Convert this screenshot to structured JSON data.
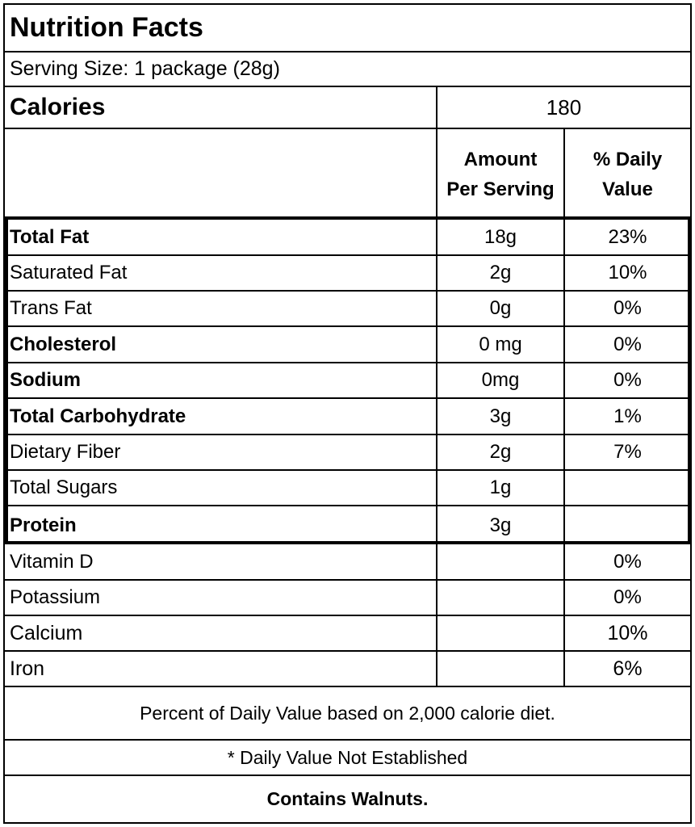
{
  "title": "Nutrition Facts",
  "serving_size": "Serving Size: 1 package (28g)",
  "calories": {
    "label": "Calories",
    "value": "180"
  },
  "header": {
    "amount_line1": "Amount",
    "amount_line2": "Per Serving",
    "dv_line1": "% Daily",
    "dv_line2": "Value"
  },
  "nutrients": [
    {
      "name": "Total Fat",
      "amount": "18g",
      "dv": "23%"
    },
    {
      "name": "Saturated Fat",
      "amount": "2g",
      "dv": "10%"
    },
    {
      "name": "Trans Fat",
      "amount": "0g",
      "dv": "0%"
    },
    {
      "name": "Cholesterol",
      "amount": "0 mg",
      "dv": "0%"
    },
    {
      "name": "Sodium",
      "amount": "0mg",
      "dv": "0%"
    },
    {
      "name": "Total Carbohydrate",
      "amount": "3g",
      "dv": "1%"
    },
    {
      "name": "Dietary Fiber",
      "amount": "2g",
      "dv": "7%"
    },
    {
      "name": "Total Sugars",
      "amount": "1g",
      "dv": ""
    },
    {
      "name": "Protein",
      "amount": "3g",
      "dv": ""
    }
  ],
  "vitamins": [
    {
      "name": "Vitamin D",
      "amount": "",
      "dv": "0%"
    },
    {
      "name": "Potassium",
      "amount": "",
      "dv": "0%"
    },
    {
      "name": "Calcium",
      "amount": "",
      "dv": "10%"
    },
    {
      "name": "Iron",
      "amount": "",
      "dv": "6%"
    }
  ],
  "footnotes": {
    "daily_value_basis": "Percent of Daily Value based on 2,000 calorie diet.",
    "not_established": "* Daily Value Not Established",
    "allergen": "Contains Walnuts."
  }
}
